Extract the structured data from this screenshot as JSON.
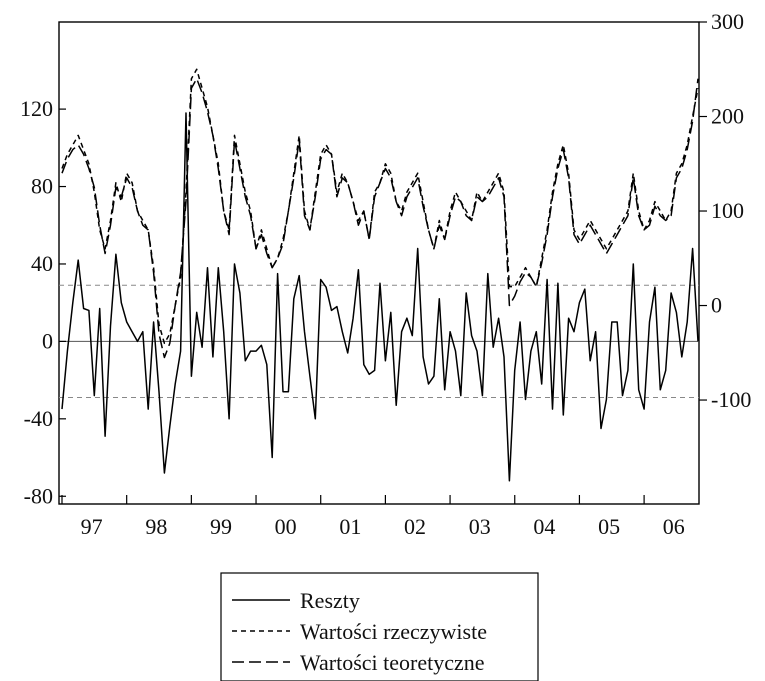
{
  "chart_data": {
    "type": "line",
    "x_start": "1997-01",
    "x_step": "month",
    "x_tick_labels": [
      "97",
      "98",
      "99",
      "00",
      "01",
      "02",
      "03",
      "04",
      "05",
      "06"
    ],
    "left_axis": {
      "ylim": [
        -84,
        165
      ],
      "ticks": [
        -80,
        -40,
        0,
        40,
        80,
        120
      ],
      "tick_labels": [
        "-80",
        "-40",
        "0",
        "40",
        "80",
        "120"
      ]
    },
    "right_axis": {
      "ylim": [
        -210,
        300
      ],
      "ticks": [
        -100,
        0,
        100,
        200,
        300
      ],
      "tick_labels": [
        "-100",
        "0",
        "100",
        "200",
        "300"
      ]
    },
    "residual_band": [
      -29,
      29
    ],
    "legend": {
      "placement": "bottom-center",
      "entries": [
        "Reszty",
        "Wartości rzeczywiste",
        "Wartości teoretyczne"
      ]
    },
    "series": [
      {
        "name": "Reszty",
        "axis": "left",
        "style": "solid",
        "values": [
          -35,
          -5,
          20,
          42,
          17,
          16,
          -28,
          17,
          -49,
          8,
          45,
          20,
          10,
          5,
          0,
          5,
          -35,
          10,
          -26,
          -68,
          -44,
          -22,
          -5,
          118,
          -18,
          15,
          -3,
          38,
          -8,
          38,
          5,
          -40,
          40,
          25,
          -10,
          -5,
          -5,
          -2,
          -12,
          -60,
          35,
          -26,
          -26,
          22,
          34,
          5,
          -18,
          -40,
          32,
          28,
          16,
          18,
          5,
          -6,
          12,
          37,
          -12,
          -17,
          -15,
          30,
          -10,
          15,
          -33,
          5,
          12,
          3,
          48,
          -8,
          -22,
          -18,
          22,
          -25,
          5,
          -5,
          -28,
          25,
          3,
          -5,
          -28,
          35,
          -3,
          12,
          -8,
          -72,
          -15,
          10,
          -30,
          -5,
          5,
          -22,
          32,
          -35,
          30,
          -38,
          12,
          5,
          20,
          27,
          -10,
          5,
          -45,
          -30,
          10,
          10,
          -28,
          -15,
          40,
          -25,
          -35,
          10,
          28,
          -25,
          -15,
          25,
          15,
          -8,
          10,
          48,
          0
        ]
      },
      {
        "name": "Wartości rzeczywiste",
        "axis": "right",
        "style": "short-dash",
        "values": [
          145,
          160,
          170,
          180,
          165,
          150,
          120,
          80,
          60,
          90,
          130,
          110,
          140,
          130,
          100,
          90,
          80,
          40,
          -20,
          -40,
          -30,
          0,
          30,
          120,
          240,
          250,
          230,
          210,
          180,
          150,
          100,
          80,
          180,
          150,
          120,
          100,
          60,
          80,
          60,
          40,
          50,
          70,
          100,
          140,
          180,
          100,
          80,
          120,
          160,
          170,
          160,
          120,
          140,
          130,
          110,
          90,
          100,
          70,
          120,
          130,
          150,
          140,
          110,
          100,
          120,
          130,
          140,
          110,
          80,
          60,
          90,
          70,
          100,
          120,
          110,
          100,
          90,
          120,
          110,
          120,
          130,
          140,
          120,
          20,
          20,
          30,
          40,
          30,
          20,
          50,
          80,
          120,
          150,
          170,
          140,
          80,
          70,
          80,
          90,
          80,
          70,
          60,
          70,
          80,
          90,
          100,
          140,
          100,
          80,
          90,
          110,
          100,
          90,
          100,
          140,
          150,
          170,
          200,
          230
        ]
      },
      {
        "name": "Wartości teoretyczne",
        "axis": "right",
        "style": "long-dash",
        "values": [
          140,
          155,
          165,
          170,
          160,
          145,
          125,
          85,
          55,
          85,
          125,
          115,
          135,
          125,
          100,
          85,
          80,
          35,
          -30,
          -55,
          -40,
          0,
          35,
          110,
          230,
          240,
          225,
          205,
          180,
          145,
          100,
          75,
          175,
          145,
          115,
          95,
          60,
          75,
          55,
          40,
          50,
          65,
          100,
          135,
          175,
          95,
          80,
          115,
          155,
          165,
          160,
          115,
          135,
          130,
          110,
          85,
          100,
          70,
          115,
          130,
          145,
          135,
          110,
          95,
          115,
          125,
          135,
          105,
          80,
          60,
          85,
          70,
          95,
          115,
          110,
          95,
          90,
          115,
          110,
          115,
          125,
          135,
          115,
          0,
          10,
          25,
          35,
          30,
          20,
          45,
          75,
          115,
          145,
          165,
          135,
          75,
          65,
          75,
          85,
          75,
          65,
          55,
          65,
          75,
          85,
          95,
          135,
          95,
          80,
          85,
          105,
          95,
          90,
          95,
          135,
          145,
          165,
          195,
          240
        ]
      }
    ]
  }
}
